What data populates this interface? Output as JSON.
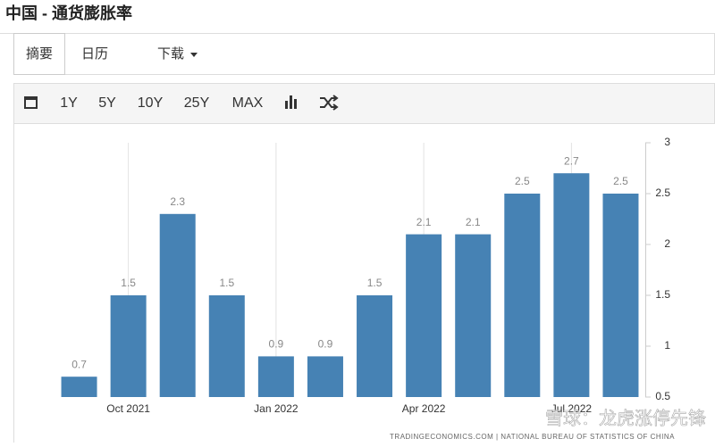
{
  "header": {
    "title": "中国 - 通货膨胀率"
  },
  "tabs": [
    "摘要",
    "日历",
    "下载"
  ],
  "toolbar": [
    "1Y",
    "5Y",
    "10Y",
    "25Y",
    "MAX"
  ],
  "chart_data": {
    "type": "bar",
    "categories": [
      null,
      "Oct 2021",
      null,
      null,
      "Jan 2022",
      null,
      null,
      "Apr 2022",
      null,
      null,
      "Jul 2022",
      null
    ],
    "values": [
      0.7,
      1.5,
      2.3,
      1.5,
      0.9,
      0.9,
      1.5,
      2.1,
      2.1,
      2.5,
      2.7,
      2.5
    ],
    "color": "#4682b4",
    "ylim": [
      0.5,
      3
    ],
    "yticks": [
      0.5,
      1,
      1.5,
      2,
      2.5,
      3
    ],
    "y_axis_side": "right",
    "grid": "x"
  },
  "source": "TRADINGECONOMICS.COM | NATIONAL BUREAU OF STATISTICS OF CHINA",
  "watermark": "雪球：龙虎涨停先锋"
}
